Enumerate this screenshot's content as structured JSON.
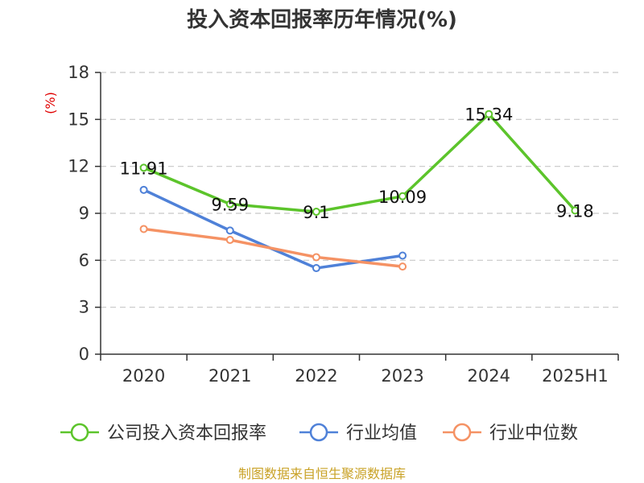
{
  "chart_data": {
    "type": "line",
    "title": "投入资本回报率历年情况(%)",
    "y_unit": "(%)",
    "categories": [
      "2020",
      "2021",
      "2022",
      "2023",
      "2024",
      "2025H1"
    ],
    "ylim": [
      0,
      18
    ],
    "yticks": [
      0,
      3,
      6,
      9,
      12,
      15,
      18
    ],
    "grid": true,
    "legend_position": "bottom",
    "series": [
      {
        "name": "公司投入资本回报率",
        "color": "#5cc42b",
        "values": [
          11.91,
          9.59,
          9.1,
          10.09,
          15.34,
          9.18
        ],
        "labels": [
          "11.91",
          "9.59",
          "9.1",
          "10.09",
          "15.34",
          "9.18"
        ]
      },
      {
        "name": "行业均值",
        "color": "#4f81d8",
        "values": [
          10.5,
          7.9,
          5.5,
          6.3,
          null,
          null
        ]
      },
      {
        "name": "行业中位数",
        "color": "#f59264",
        "values": [
          8.0,
          7.3,
          6.2,
          5.6,
          null,
          null
        ]
      }
    ]
  },
  "source": "制图数据来自恒生聚源数据库"
}
